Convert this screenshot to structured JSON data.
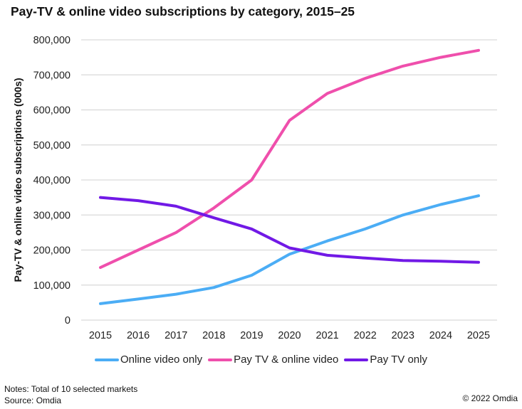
{
  "chart_data": {
    "type": "line",
    "title": "Pay-TV & online video subscriptions by category, 2015–25",
    "xlabel": "",
    "ylabel": "Pay-TV & online video subscriptions (000s)",
    "categories": [
      "2015",
      "2016",
      "2017",
      "2018",
      "2019",
      "2020",
      "2021",
      "2022",
      "2023",
      "2024",
      "2025"
    ],
    "ylim": [
      0,
      800000
    ],
    "yticks": [
      0,
      100000,
      200000,
      300000,
      400000,
      500000,
      600000,
      700000,
      800000
    ],
    "ytick_labels": [
      "0",
      "100,000",
      "200,000",
      "300,000",
      "400,000",
      "500,000",
      "600,000",
      "700,000",
      "800,000"
    ],
    "grid": true,
    "legend_position": "bottom",
    "series": [
      {
        "name": "Online video only",
        "color": "#4badf5",
        "values": [
          47000,
          60000,
          74000,
          93000,
          128000,
          188000,
          226000,
          260000,
          300000,
          330000,
          355000
        ]
      },
      {
        "name": "Pay TV & online video",
        "color": "#ef4fac",
        "values": [
          150000,
          200000,
          250000,
          320000,
          400000,
          570000,
          647000,
          690000,
          725000,
          750000,
          770000
        ]
      },
      {
        "name": "Pay TV only",
        "color": "#7119e6",
        "values": [
          350000,
          341000,
          325000,
          292000,
          260000,
          206000,
          185000,
          177000,
          170000,
          168000,
          165000
        ]
      }
    ]
  },
  "footer": {
    "notes": "Notes: Total of 10 selected markets",
    "source": "Source: Omdia",
    "copyright": "© 2022 Omdia"
  }
}
